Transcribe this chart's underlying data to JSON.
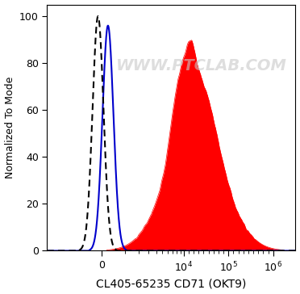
{
  "xlabel": "CL405-65235 CD71 (OKT9)",
  "ylabel": "Normalized To Mode",
  "watermark": "WWW.PTCLAB.COM",
  "ylim": [
    0,
    105
  ],
  "yticks": [
    0,
    20,
    40,
    60,
    80,
    100
  ],
  "background_color": "#ffffff",
  "dashed_color": "#000000",
  "blue_color": "#0000cc",
  "red_color": "#ff0000",
  "xlabel_fontsize": 10,
  "ylabel_fontsize": 9,
  "tick_fontsize": 9,
  "watermark_color": "#c8c8c8",
  "watermark_fontsize": 14,
  "watermark_alpha": 0.6,
  "xtick_labels": [
    "0",
    "10^4",
    "10^5",
    "10^6"
  ],
  "xtick_positions": [
    0.22,
    0.55,
    0.73,
    0.91
  ]
}
